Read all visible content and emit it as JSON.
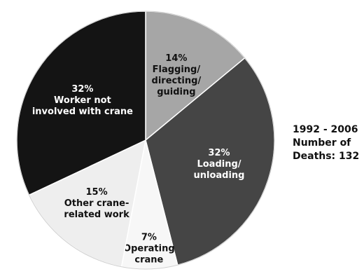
{
  "chart_data": {
    "type": "pie",
    "start_angle_deg": 0,
    "direction": "clockwise",
    "slices": [
      {
        "percent_label": "14%",
        "value": 14,
        "lines": [
          "Flagging/",
          "directing/",
          "guiding"
        ],
        "color": "#a6a6a6",
        "text_color": "#111111"
      },
      {
        "percent_label": "32%",
        "value": 32,
        "lines": [
          "Loading/",
          "unloading"
        ],
        "color": "#454545",
        "text_color": "#ffffff"
      },
      {
        "percent_label": "7%",
        "value": 7,
        "lines": [
          "Operating",
          "crane"
        ],
        "color": "#f7f7f7",
        "text_color": "#111111"
      },
      {
        "percent_label": "15%",
        "value": 15,
        "lines": [
          "Other crane-",
          "related work"
        ],
        "color": "#eeeeee",
        "text_color": "#111111"
      },
      {
        "percent_label": "32%",
        "value": 32,
        "lines": [
          "Worker not",
          "involved with crane"
        ],
        "color": "#141414",
        "text_color": "#ffffff"
      }
    ]
  },
  "side_note": {
    "years": "1992 - 2006",
    "line2": "Number of",
    "line3": "Deaths: 132"
  }
}
